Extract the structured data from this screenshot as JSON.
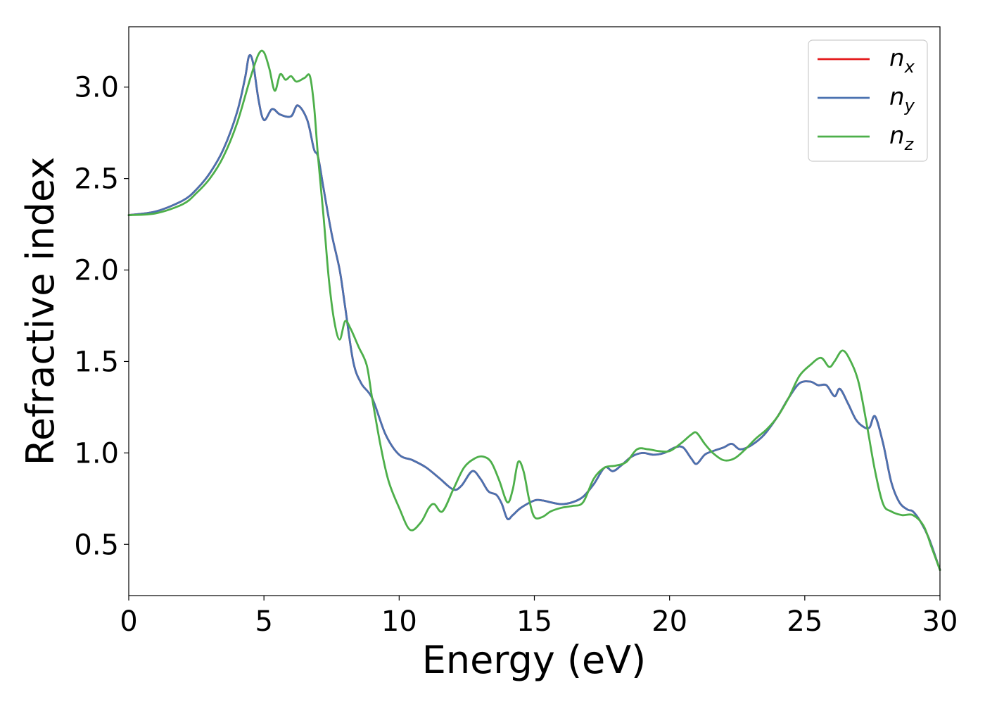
{
  "chart_data": {
    "type": "line",
    "xlabel": "Energy (eV)",
    "ylabel": "Refractive index",
    "xlim": [
      0,
      30
    ],
    "ylim": [
      0.22,
      3.33
    ],
    "xticks": [
      0,
      5,
      10,
      15,
      20,
      25,
      30
    ],
    "xtick_labels": [
      "0",
      "5",
      "10",
      "15",
      "20",
      "25",
      "30"
    ],
    "yticks": [
      0.5,
      1.0,
      1.5,
      2.0,
      2.5,
      3.0
    ],
    "ytick_labels": [
      "0.5",
      "1.0",
      "1.5",
      "2.0",
      "2.5",
      "3.0"
    ],
    "grid": false,
    "legend_position": "top-right",
    "series": [
      {
        "name": "n",
        "subscript": "x",
        "color": "#e41a1c",
        "x": [
          0,
          1,
          2,
          2.5,
          3,
          3.5,
          4,
          4.3,
          4.45,
          4.6,
          4.8,
          5.0,
          5.3,
          5.6,
          6.0,
          6.25,
          6.6,
          6.85,
          7.0,
          7.2,
          7.5,
          7.8,
          8.0,
          8.3,
          8.6,
          9.0,
          9.5,
          10.0,
          10.5,
          11.0,
          11.5,
          12.0,
          12.3,
          12.7,
          13.0,
          13.3,
          13.6,
          13.8,
          14.0,
          14.2,
          14.5,
          15.0,
          15.3,
          15.6,
          16.0,
          16.4,
          16.8,
          17.2,
          17.6,
          17.9,
          18.2,
          18.6,
          19.0,
          19.4,
          19.8,
          20.2,
          20.5,
          20.8,
          21.0,
          21.3,
          21.6,
          22.0,
          22.3,
          22.6,
          23.0,
          23.5,
          24.0,
          24.4,
          24.8,
          25.2,
          25.5,
          25.8,
          26.1,
          26.3,
          26.6,
          26.9,
          27.2,
          27.4,
          27.6,
          27.9,
          28.2,
          28.5,
          28.8,
          29.0,
          29.3,
          29.6,
          30.0
        ],
        "y": [
          2.3,
          2.32,
          2.38,
          2.44,
          2.53,
          2.66,
          2.86,
          3.05,
          3.17,
          3.13,
          2.93,
          2.82,
          2.88,
          2.85,
          2.84,
          2.9,
          2.82,
          2.66,
          2.62,
          2.45,
          2.2,
          2.0,
          1.8,
          1.5,
          1.38,
          1.3,
          1.1,
          0.99,
          0.96,
          0.92,
          0.86,
          0.8,
          0.82,
          0.9,
          0.86,
          0.79,
          0.77,
          0.72,
          0.64,
          0.66,
          0.7,
          0.74,
          0.74,
          0.73,
          0.72,
          0.73,
          0.76,
          0.83,
          0.92,
          0.9,
          0.93,
          0.98,
          1.0,
          0.99,
          1.0,
          1.03,
          1.03,
          0.97,
          0.94,
          0.99,
          1.01,
          1.03,
          1.05,
          1.02,
          1.04,
          1.1,
          1.2,
          1.3,
          1.38,
          1.39,
          1.37,
          1.37,
          1.31,
          1.35,
          1.27,
          1.18,
          1.14,
          1.14,
          1.2,
          1.05,
          0.84,
          0.73,
          0.69,
          0.68,
          0.62,
          0.53,
          0.36
        ]
      },
      {
        "name": "n",
        "subscript": "y",
        "color": "#4a72b0",
        "x": [
          0,
          1,
          2,
          2.5,
          3,
          3.5,
          4,
          4.3,
          4.45,
          4.6,
          4.8,
          5.0,
          5.3,
          5.6,
          6.0,
          6.25,
          6.6,
          6.85,
          7.0,
          7.2,
          7.5,
          7.8,
          8.0,
          8.3,
          8.6,
          9.0,
          9.5,
          10.0,
          10.5,
          11.0,
          11.5,
          12.0,
          12.3,
          12.7,
          13.0,
          13.3,
          13.6,
          13.8,
          14.0,
          14.2,
          14.5,
          15.0,
          15.3,
          15.6,
          16.0,
          16.4,
          16.8,
          17.2,
          17.6,
          17.9,
          18.2,
          18.6,
          19.0,
          19.4,
          19.8,
          20.2,
          20.5,
          20.8,
          21.0,
          21.3,
          21.6,
          22.0,
          22.3,
          22.6,
          23.0,
          23.5,
          24.0,
          24.4,
          24.8,
          25.2,
          25.5,
          25.8,
          26.1,
          26.3,
          26.6,
          26.9,
          27.2,
          27.4,
          27.6,
          27.9,
          28.2,
          28.5,
          28.8,
          29.0,
          29.3,
          29.6,
          30.0
        ],
        "y": [
          2.3,
          2.32,
          2.38,
          2.44,
          2.53,
          2.66,
          2.86,
          3.05,
          3.17,
          3.13,
          2.93,
          2.82,
          2.88,
          2.85,
          2.84,
          2.9,
          2.82,
          2.66,
          2.62,
          2.45,
          2.2,
          2.0,
          1.8,
          1.5,
          1.38,
          1.3,
          1.1,
          0.99,
          0.96,
          0.92,
          0.86,
          0.8,
          0.82,
          0.9,
          0.86,
          0.79,
          0.77,
          0.72,
          0.64,
          0.66,
          0.7,
          0.74,
          0.74,
          0.73,
          0.72,
          0.73,
          0.76,
          0.83,
          0.92,
          0.9,
          0.93,
          0.98,
          1.0,
          0.99,
          1.0,
          1.03,
          1.03,
          0.97,
          0.94,
          0.99,
          1.01,
          1.03,
          1.05,
          1.02,
          1.04,
          1.1,
          1.2,
          1.3,
          1.38,
          1.39,
          1.37,
          1.37,
          1.31,
          1.35,
          1.27,
          1.18,
          1.14,
          1.14,
          1.2,
          1.05,
          0.84,
          0.73,
          0.69,
          0.68,
          0.62,
          0.53,
          0.36
        ]
      },
      {
        "name": "n",
        "subscript": "z",
        "color": "#4daf4a",
        "x": [
          0,
          1,
          2,
          2.5,
          3,
          3.5,
          4,
          4.5,
          4.8,
          5.0,
          5.2,
          5.4,
          5.6,
          5.8,
          6.0,
          6.2,
          6.5,
          6.7,
          6.85,
          7.0,
          7.2,
          7.4,
          7.6,
          7.8,
          8.0,
          8.2,
          8.5,
          8.8,
          9.0,
          9.3,
          9.6,
          10.0,
          10.4,
          10.8,
          11.1,
          11.3,
          11.6,
          12.0,
          12.4,
          12.8,
          13.1,
          13.4,
          13.7,
          14.0,
          14.2,
          14.4,
          14.6,
          14.8,
          15.0,
          15.3,
          15.6,
          16.0,
          16.4,
          16.8,
          17.2,
          17.6,
          18.0,
          18.4,
          18.8,
          19.2,
          19.6,
          20.0,
          20.4,
          20.8,
          21.0,
          21.3,
          21.6,
          22.0,
          22.4,
          22.8,
          23.2,
          23.6,
          24.0,
          24.4,
          24.8,
          25.2,
          25.6,
          25.9,
          26.1,
          26.4,
          26.7,
          27.0,
          27.3,
          27.6,
          27.9,
          28.2,
          28.6,
          29.0,
          29.4,
          29.7,
          30.0
        ],
        "y": [
          2.3,
          2.31,
          2.36,
          2.42,
          2.5,
          2.62,
          2.8,
          3.05,
          3.18,
          3.19,
          3.1,
          2.98,
          3.07,
          3.04,
          3.06,
          3.03,
          3.05,
          3.06,
          2.9,
          2.62,
          2.3,
          1.95,
          1.72,
          1.62,
          1.72,
          1.68,
          1.58,
          1.48,
          1.3,
          1.05,
          0.85,
          0.7,
          0.58,
          0.62,
          0.7,
          0.72,
          0.68,
          0.8,
          0.92,
          0.97,
          0.98,
          0.95,
          0.85,
          0.73,
          0.8,
          0.95,
          0.9,
          0.75,
          0.65,
          0.65,
          0.68,
          0.7,
          0.71,
          0.73,
          0.86,
          0.92,
          0.93,
          0.95,
          1.02,
          1.02,
          1.01,
          1.01,
          1.05,
          1.1,
          1.11,
          1.05,
          1.0,
          0.96,
          0.97,
          1.02,
          1.08,
          1.13,
          1.2,
          1.3,
          1.42,
          1.48,
          1.52,
          1.47,
          1.5,
          1.56,
          1.5,
          1.38,
          1.15,
          0.9,
          0.72,
          0.68,
          0.66,
          0.66,
          0.6,
          0.48,
          0.36
        ]
      }
    ]
  }
}
